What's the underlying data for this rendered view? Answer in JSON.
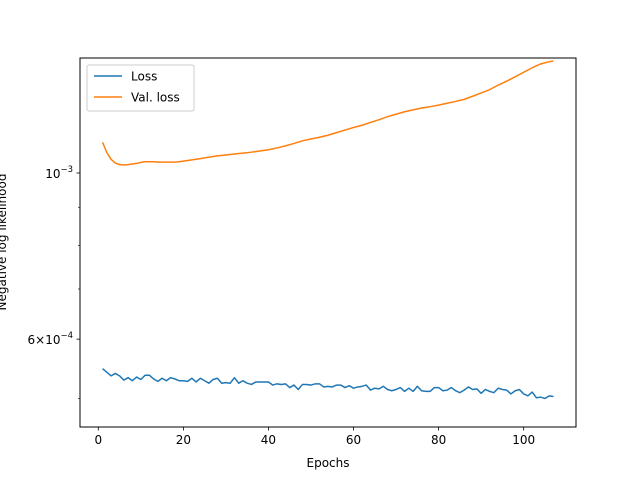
{
  "chart_data": {
    "type": "line",
    "title": "",
    "xlabel": "Epochs",
    "ylabel": "Negative log likelihood",
    "xlim": [
      -4.3,
      112.3
    ],
    "ylim": [
      0.000458,
      0.001424
    ],
    "y_scale": "log",
    "x_ticks": [
      0,
      20,
      40,
      60,
      80,
      100
    ],
    "x_tick_labels": [
      "0",
      "20",
      "40",
      "60",
      "80",
      "100"
    ],
    "y_ticks": [
      0.001,
      0.0006
    ],
    "y_tick_labels": [
      {
        "base": "10",
        "exp": "−3"
      },
      {
        "base": "6×10",
        "exp": "−4"
      }
    ],
    "legend": {
      "position": "upper-left",
      "entries": [
        "Loss",
        "Val. loss"
      ]
    },
    "grid": false,
    "colors": {
      "Loss": "#1f77b4",
      "Val. loss": "#ff7f0e"
    },
    "series": [
      {
        "name": "Loss",
        "x": [
          1,
          2,
          3,
          4,
          5,
          6,
          7,
          8,
          9,
          10,
          11,
          12,
          13,
          14,
          15,
          16,
          17,
          18,
          19,
          20,
          21,
          22,
          23,
          24,
          25,
          26,
          27,
          28,
          29,
          30,
          31,
          32,
          33,
          34,
          35,
          36,
          37,
          38,
          39,
          40,
          41,
          42,
          43,
          44,
          45,
          46,
          47,
          48,
          49,
          50,
          51,
          52,
          53,
          54,
          55,
          56,
          57,
          58,
          59,
          60,
          61,
          62,
          63,
          64,
          65,
          66,
          67,
          68,
          69,
          70,
          71,
          72,
          73,
          74,
          75,
          76,
          77,
          78,
          79,
          80,
          81,
          82,
          83,
          84,
          85,
          86,
          87,
          88,
          89,
          90,
          91,
          92,
          93,
          94,
          95,
          96,
          97,
          98,
          99,
          100,
          101,
          102,
          103,
          104,
          105,
          106,
          107
        ],
        "values": [
          0.000548,
          0.000542,
          0.000536,
          0.00054,
          0.000536,
          0.000529,
          0.000533,
          0.000528,
          0.000534,
          0.00053,
          0.000537,
          0.000537,
          0.000531,
          0.000527,
          0.000532,
          0.000528,
          0.000533,
          0.000531,
          0.000528,
          0.000528,
          0.000527,
          0.000532,
          0.000526,
          0.000532,
          0.000528,
          0.000524,
          0.00053,
          0.000532,
          0.000524,
          0.000525,
          0.000524,
          0.000533,
          0.000524,
          0.000528,
          0.000524,
          0.000522,
          0.000526,
          0.000526,
          0.000526,
          0.000526,
          0.000521,
          0.000523,
          0.000522,
          0.000523,
          0.000517,
          0.000521,
          0.000514,
          0.000522,
          0.000522,
          0.000521,
          0.000523,
          0.000523,
          0.000518,
          0.000519,
          0.000518,
          0.000521,
          0.000521,
          0.000517,
          0.00052,
          0.000516,
          0.000518,
          0.000519,
          0.000521,
          0.000513,
          0.000516,
          0.000515,
          0.000519,
          0.000514,
          0.000512,
          0.000514,
          0.000517,
          0.000511,
          0.000516,
          0.000511,
          0.000519,
          0.000512,
          0.000511,
          0.000511,
          0.000517,
          0.000517,
          0.000512,
          0.000513,
          0.000517,
          0.000512,
          0.000509,
          0.000513,
          0.000518,
          0.000514,
          0.000515,
          0.000508,
          0.000514,
          0.000511,
          0.000509,
          0.000516,
          0.000514,
          0.000513,
          0.000507,
          0.000512,
          0.000514,
          0.000507,
          0.000504,
          0.00051,
          0.000501,
          0.000502,
          0.0005,
          0.000504,
          0.000503
        ]
      },
      {
        "name": "Val. loss",
        "x": [
          1,
          2,
          3,
          4,
          5,
          6,
          7,
          8,
          9,
          10,
          11,
          12,
          13,
          14,
          15,
          16,
          17,
          18,
          19,
          20,
          22,
          24,
          26,
          28,
          30,
          32,
          34,
          36,
          38,
          40,
          42,
          44,
          46,
          48,
          50,
          52,
          54,
          56,
          58,
          60,
          62,
          64,
          66,
          68,
          70,
          72,
          74,
          76,
          78,
          80,
          82,
          84,
          86,
          88,
          90,
          92,
          94,
          96,
          98,
          100,
          102,
          104,
          106,
          107
        ],
        "values": [
          0.001099,
          0.001065,
          0.001043,
          0.001031,
          0.001026,
          0.001025,
          0.001026,
          0.001028,
          0.00103,
          0.001033,
          0.001035,
          0.001035,
          0.001035,
          0.001034,
          0.001034,
          0.001034,
          0.001034,
          0.001034,
          0.001035,
          0.001037,
          0.001041,
          0.001045,
          0.00105,
          0.001054,
          0.001057,
          0.00106,
          0.001063,
          0.001066,
          0.00107,
          0.001074,
          0.00108,
          0.001087,
          0.001095,
          0.001104,
          0.00111,
          0.001116,
          0.001123,
          0.001132,
          0.001141,
          0.00115,
          0.001158,
          0.001168,
          0.001178,
          0.001189,
          0.001198,
          0.001207,
          0.001214,
          0.001221,
          0.001226,
          0.001232,
          0.001239,
          0.001246,
          0.001254,
          0.001266,
          0.001279,
          0.001292,
          0.00131,
          0.001326,
          0.001344,
          0.001363,
          0.001382,
          0.001398,
          0.001408,
          0.001411
        ]
      }
    ]
  }
}
